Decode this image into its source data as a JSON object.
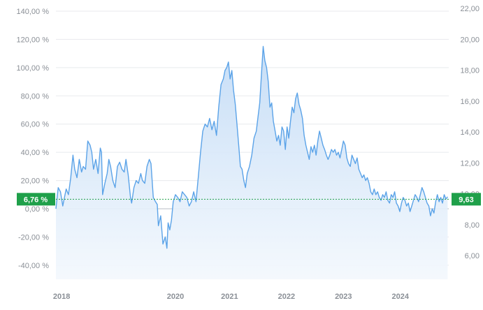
{
  "chart_data": {
    "type": "area",
    "title": "",
    "xlabel": "",
    "ylabel": "",
    "grid": true,
    "colors": {
      "line": "#5ba3e8",
      "fill_top": "#c4dcf6",
      "fill_bottom": "#f3f8fd",
      "badge": "#1fa04a",
      "reference_line": "#1fa04a",
      "axis_text": "#8a8f96",
      "grid": "#e8eaed",
      "zero_line": "#b9bec6"
    },
    "y_left": {
      "unit": "percent",
      "range": [
        -40,
        140
      ],
      "ticks": [
        -40,
        -20,
        0,
        20,
        40,
        60,
        80,
        100,
        120,
        140
      ],
      "tick_labels": [
        "-40,00 %",
        "-20,00 %",
        "0,00 %",
        "20,00 %",
        "40,00 %",
        "60,00 %",
        "80,00 %",
        "100,00 %",
        "120,00 %",
        "140,00 %"
      ]
    },
    "y_right": {
      "unit": "price",
      "range": [
        5.8,
        22.0
      ],
      "ticks": [
        6,
        8,
        10,
        12,
        14,
        16,
        18,
        20,
        22
      ],
      "tick_labels": [
        "6,00",
        "8,00",
        "10,00",
        "12,00",
        "14,00",
        "16,00",
        "18,00",
        "20,00",
        "22,00"
      ]
    },
    "x": {
      "range": [
        2018.0,
        2024.9
      ],
      "tick_values": [
        2018.1,
        2020.1,
        2021.05,
        2022.05,
        2023.05,
        2024.05
      ],
      "tick_labels": [
        "2018",
        "2020",
        "2021",
        "2022",
        "2023",
        "2024"
      ]
    },
    "reference": {
      "value_percent": 6.76,
      "left_label": "6,76 %",
      "right_label": "9,63"
    },
    "series": [
      {
        "points": [
          [
            2018.0,
            0
          ],
          [
            2018.04,
            15
          ],
          [
            2018.08,
            12
          ],
          [
            2018.12,
            2
          ],
          [
            2018.15,
            8
          ],
          [
            2018.18,
            14
          ],
          [
            2018.22,
            10
          ],
          [
            2018.26,
            22
          ],
          [
            2018.3,
            38
          ],
          [
            2018.33,
            28
          ],
          [
            2018.37,
            22
          ],
          [
            2018.41,
            35
          ],
          [
            2018.45,
            26
          ],
          [
            2018.48,
            30
          ],
          [
            2018.52,
            28
          ],
          [
            2018.56,
            48
          ],
          [
            2018.6,
            45
          ],
          [
            2018.63,
            40
          ],
          [
            2018.66,
            28
          ],
          [
            2018.7,
            35
          ],
          [
            2018.74,
            25
          ],
          [
            2018.78,
            43
          ],
          [
            2018.8,
            40
          ],
          [
            2018.82,
            10
          ],
          [
            2018.86,
            18
          ],
          [
            2018.9,
            25
          ],
          [
            2018.93,
            35
          ],
          [
            2018.96,
            30
          ],
          [
            2019.0,
            20
          ],
          [
            2019.04,
            15
          ],
          [
            2019.08,
            30
          ],
          [
            2019.12,
            33
          ],
          [
            2019.16,
            28
          ],
          [
            2019.2,
            26
          ],
          [
            2019.23,
            35
          ],
          [
            2019.27,
            24
          ],
          [
            2019.31,
            8
          ],
          [
            2019.33,
            4
          ],
          [
            2019.37,
            15
          ],
          [
            2019.41,
            20
          ],
          [
            2019.45,
            18
          ],
          [
            2019.49,
            25
          ],
          [
            2019.52,
            20
          ],
          [
            2019.56,
            18
          ],
          [
            2019.6,
            30
          ],
          [
            2019.64,
            35
          ],
          [
            2019.67,
            32
          ],
          [
            2019.71,
            8
          ],
          [
            2019.75,
            5
          ],
          [
            2019.78,
            3
          ],
          [
            2019.8,
            -12
          ],
          [
            2019.84,
            -5
          ],
          [
            2019.88,
            -25
          ],
          [
            2019.92,
            -20
          ],
          [
            2019.95,
            -28
          ],
          [
            2019.97,
            -10
          ],
          [
            2020.0,
            -15
          ],
          [
            2020.03,
            -8
          ],
          [
            2020.06,
            5
          ],
          [
            2020.1,
            10
          ],
          [
            2020.14,
            8
          ],
          [
            2020.18,
            5
          ],
          [
            2020.22,
            12
          ],
          [
            2020.26,
            10
          ],
          [
            2020.3,
            8
          ],
          [
            2020.34,
            2
          ],
          [
            2020.38,
            5
          ],
          [
            2020.42,
            12
          ],
          [
            2020.46,
            5
          ],
          [
            2020.5,
            22
          ],
          [
            2020.54,
            40
          ],
          [
            2020.58,
            55
          ],
          [
            2020.62,
            60
          ],
          [
            2020.66,
            58
          ],
          [
            2020.7,
            64
          ],
          [
            2020.74,
            56
          ],
          [
            2020.78,
            62
          ],
          [
            2020.82,
            52
          ],
          [
            2020.86,
            72
          ],
          [
            2020.9,
            88
          ],
          [
            2020.94,
            92
          ],
          [
            2020.97,
            98
          ],
          [
            2021.0,
            100
          ],
          [
            2021.03,
            104
          ],
          [
            2021.06,
            92
          ],
          [
            2021.09,
            98
          ],
          [
            2021.12,
            84
          ],
          [
            2021.15,
            74
          ],
          [
            2021.18,
            60
          ],
          [
            2021.21,
            45
          ],
          [
            2021.24,
            30
          ],
          [
            2021.27,
            28
          ],
          [
            2021.3,
            20
          ],
          [
            2021.33,
            15
          ],
          [
            2021.36,
            25
          ],
          [
            2021.4,
            30
          ],
          [
            2021.44,
            38
          ],
          [
            2021.48,
            50
          ],
          [
            2021.52,
            55
          ],
          [
            2021.55,
            65
          ],
          [
            2021.58,
            75
          ],
          [
            2021.61,
            95
          ],
          [
            2021.64,
            115
          ],
          [
            2021.67,
            105
          ],
          [
            2021.7,
            100
          ],
          [
            2021.73,
            90
          ],
          [
            2021.76,
            72
          ],
          [
            2021.79,
            75
          ],
          [
            2021.82,
            62
          ],
          [
            2021.85,
            55
          ],
          [
            2021.88,
            48
          ],
          [
            2021.91,
            52
          ],
          [
            2021.94,
            45
          ],
          [
            2021.97,
            58
          ],
          [
            2022.0,
            55
          ],
          [
            2022.03,
            42
          ],
          [
            2022.06,
            58
          ],
          [
            2022.09,
            50
          ],
          [
            2022.12,
            62
          ],
          [
            2022.15,
            72
          ],
          [
            2022.18,
            68
          ],
          [
            2022.21,
            78
          ],
          [
            2022.24,
            82
          ],
          [
            2022.27,
            74
          ],
          [
            2022.3,
            70
          ],
          [
            2022.33,
            64
          ],
          [
            2022.36,
            52
          ],
          [
            2022.39,
            45
          ],
          [
            2022.42,
            40
          ],
          [
            2022.45,
            35
          ],
          [
            2022.48,
            44
          ],
          [
            2022.51,
            40
          ],
          [
            2022.54,
            45
          ],
          [
            2022.57,
            38
          ],
          [
            2022.6,
            48
          ],
          [
            2022.63,
            55
          ],
          [
            2022.66,
            50
          ],
          [
            2022.69,
            45
          ],
          [
            2022.72,
            42
          ],
          [
            2022.75,
            38
          ],
          [
            2022.78,
            35
          ],
          [
            2022.81,
            38
          ],
          [
            2022.84,
            42
          ],
          [
            2022.87,
            40
          ],
          [
            2022.9,
            42
          ],
          [
            2022.93,
            38
          ],
          [
            2022.96,
            40
          ],
          [
            2022.99,
            36
          ],
          [
            2023.02,
            42
          ],
          [
            2023.05,
            48
          ],
          [
            2023.08,
            45
          ],
          [
            2023.11,
            36
          ],
          [
            2023.14,
            32
          ],
          [
            2023.17,
            30
          ],
          [
            2023.2,
            38
          ],
          [
            2023.23,
            35
          ],
          [
            2023.26,
            32
          ],
          [
            2023.29,
            36
          ],
          [
            2023.32,
            28
          ],
          [
            2023.35,
            25
          ],
          [
            2023.38,
            22
          ],
          [
            2023.41,
            24
          ],
          [
            2023.44,
            20
          ],
          [
            2023.47,
            22
          ],
          [
            2023.5,
            18
          ],
          [
            2023.53,
            12
          ],
          [
            2023.56,
            10
          ],
          [
            2023.59,
            14
          ],
          [
            2023.62,
            10
          ],
          [
            2023.65,
            12
          ],
          [
            2023.68,
            8
          ],
          [
            2023.71,
            6
          ],
          [
            2023.74,
            10
          ],
          [
            2023.77,
            8
          ],
          [
            2023.8,
            12
          ],
          [
            2023.83,
            6
          ],
          [
            2023.86,
            4
          ],
          [
            2023.89,
            10
          ],
          [
            2023.92,
            8
          ],
          [
            2023.95,
            12
          ],
          [
            2023.98,
            4
          ],
          [
            2024.01,
            2
          ],
          [
            2024.04,
            -2
          ],
          [
            2024.07,
            4
          ],
          [
            2024.1,
            8
          ],
          [
            2024.13,
            6
          ],
          [
            2024.16,
            2
          ],
          [
            2024.19,
            4
          ],
          [
            2024.22,
            -2
          ],
          [
            2024.25,
            2
          ],
          [
            2024.28,
            6
          ],
          [
            2024.31,
            10
          ],
          [
            2024.34,
            8
          ],
          [
            2024.37,
            5
          ],
          [
            2024.4,
            10
          ],
          [
            2024.43,
            15
          ],
          [
            2024.46,
            12
          ],
          [
            2024.49,
            8
          ],
          [
            2024.52,
            4
          ],
          [
            2024.55,
            2
          ],
          [
            2024.58,
            -5
          ],
          [
            2024.61,
            0
          ],
          [
            2024.64,
            -3
          ],
          [
            2024.67,
            5
          ],
          [
            2024.7,
            10
          ],
          [
            2024.73,
            5
          ],
          [
            2024.76,
            8
          ],
          [
            2024.79,
            4
          ],
          [
            2024.82,
            10
          ],
          [
            2024.85,
            7
          ],
          [
            2024.88,
            8.5
          ]
        ]
      }
    ]
  }
}
